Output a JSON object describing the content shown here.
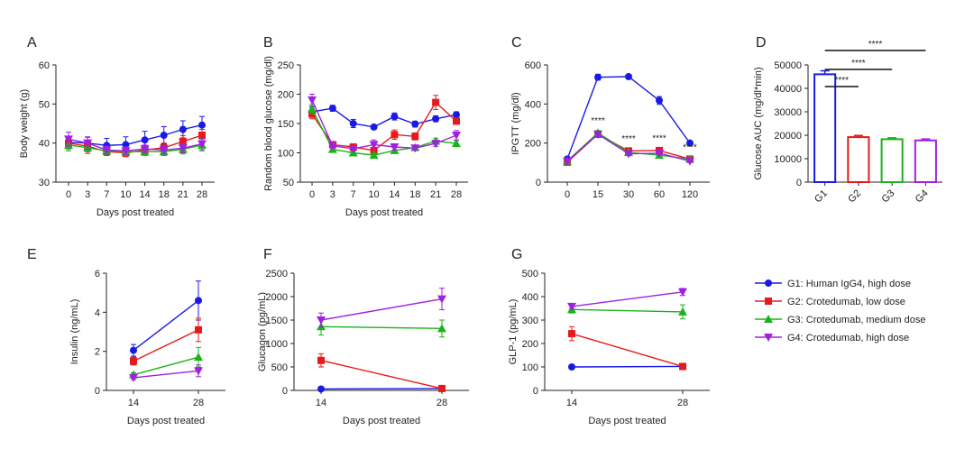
{
  "colors": {
    "G1": "#1a1ae6",
    "G2": "#e61a1a",
    "G3": "#1ab31a",
    "G4": "#a020e0"
  },
  "legend": [
    {
      "key": "G1",
      "label": "G1: Human IgG4, high dose",
      "marker": "circle"
    },
    {
      "key": "G2",
      "label": "G2: Crotedumab, low dose",
      "marker": "square"
    },
    {
      "key": "G3",
      "label": "G3: Crotedumab, medium dose",
      "marker": "triangle-up"
    },
    {
      "key": "G4",
      "label": "G4: Crotedumab, high dose",
      "marker": "triangle-down"
    }
  ],
  "chart_data": [
    {
      "panel": "A",
      "type": "line",
      "ylabel": "Body weight (g)",
      "xlabel": "Days post treated",
      "categories": [
        "0",
        "3",
        "7",
        "10",
        "14",
        "18",
        "21",
        "28"
      ],
      "ylim": [
        30,
        60
      ],
      "yticks": [
        30,
        40,
        50,
        60
      ],
      "series": [
        {
          "key": "G1",
          "values": [
            40.2,
            40.0,
            39.4,
            39.6,
            40.8,
            42.0,
            43.5,
            44.6
          ],
          "err": [
            1.5,
            1.5,
            1.8,
            2,
            2.2,
            2.2,
            2.2,
            2.2
          ]
        },
        {
          "key": "G2",
          "values": [
            40.0,
            39.2,
            37.8,
            37.5,
            38.2,
            38.8,
            40.4,
            42.0
          ],
          "err": [
            1.5,
            1.5,
            1,
            1,
            1,
            1.2,
            1.5,
            1.5
          ]
        },
        {
          "key": "G3",
          "values": [
            39.5,
            38.8,
            38.0,
            37.8,
            37.8,
            37.8,
            38.4,
            39.5
          ],
          "err": [
            1.5,
            1.5,
            1,
            1,
            1,
            1,
            1.2,
            1.5
          ]
        },
        {
          "key": "G4",
          "values": [
            41.0,
            40.0,
            38.2,
            38.0,
            38.5,
            38.2,
            38.7,
            39.8
          ],
          "err": [
            1.8,
            1.6,
            1,
            1,
            1,
            1,
            1.2,
            1.5
          ]
        }
      ]
    },
    {
      "panel": "B",
      "type": "line",
      "ylabel": "Random blood glucose (mg/dl)",
      "xlabel": "Days post treated",
      "categories": [
        "0",
        "3",
        "7",
        "10",
        "14",
        "18",
        "21",
        "28"
      ],
      "ylim": [
        50,
        250
      ],
      "yticks": [
        50,
        100,
        150,
        200,
        250
      ],
      "series": [
        {
          "key": "G1",
          "values": [
            170,
            176,
            150,
            144,
            162,
            149,
            158,
            165
          ],
          "err": [
            8,
            5,
            7,
            4,
            6,
            5,
            5,
            5
          ]
        },
        {
          "key": "G2",
          "values": [
            166,
            114,
            110,
            104,
            131,
            128,
            186,
            154
          ],
          "err": [
            8,
            4,
            4,
            5,
            8,
            6,
            12,
            5
          ]
        },
        {
          "key": "G3",
          "values": [
            175,
            106,
            100,
            96,
            104,
            109,
            120,
            116
          ],
          "err": [
            8,
            3,
            3,
            3,
            5,
            3,
            5,
            5
          ]
        },
        {
          "key": "G4",
          "values": [
            190,
            112,
            107,
            114,
            110,
            108,
            116,
            130
          ],
          "err": [
            10,
            4,
            4,
            8,
            5,
            3,
            5,
            8
          ]
        }
      ]
    },
    {
      "panel": "C",
      "type": "line",
      "ylabel": "IPGTT (mg/dl)",
      "xlabel": "",
      "categories": [
        "0",
        "15",
        "30",
        "60",
        "120"
      ],
      "ylim": [
        0,
        600
      ],
      "yticks": [
        0,
        200,
        400,
        600
      ],
      "annotations": [
        {
          "category": "15",
          "text": "****"
        },
        {
          "category": "30",
          "text": "****"
        },
        {
          "category": "60",
          "text": "****"
        },
        {
          "category": "120",
          "text": "****"
        }
      ],
      "series": [
        {
          "key": "G1",
          "values": [
            118,
            537,
            540,
            418,
            200
          ],
          "err": [
            10,
            15,
            10,
            20,
            10
          ]
        },
        {
          "key": "G2",
          "values": [
            102,
            245,
            160,
            162,
            118
          ],
          "err": [
            8,
            12,
            10,
            10,
            8
          ]
        },
        {
          "key": "G3",
          "values": [
            108,
            252,
            152,
            138,
            118
          ],
          "err": [
            8,
            12,
            8,
            8,
            8
          ]
        },
        {
          "key": "G4",
          "values": [
            106,
            245,
            145,
            148,
            108
          ],
          "err": [
            8,
            12,
            8,
            8,
            8
          ]
        }
      ]
    },
    {
      "panel": "D",
      "type": "bar",
      "ylabel": "Glucose AUC (mg/dl*min)",
      "xlabel": "",
      "categories": [
        "G1",
        "G2",
        "G3",
        "G4"
      ],
      "ylim": [
        0,
        50000
      ],
      "yticks": [
        0,
        10000,
        20000,
        30000,
        40000,
        50000
      ],
      "values": [
        46000,
        19200,
        18300,
        17800
      ],
      "err": [
        1500,
        700,
        600,
        600
      ],
      "significance": [
        {
          "from": "G1",
          "to": "G2",
          "text": "****"
        },
        {
          "from": "G1",
          "to": "G3",
          "text": "****"
        },
        {
          "from": "G1",
          "to": "G4",
          "text": "****"
        }
      ]
    },
    {
      "panel": "E",
      "type": "line",
      "ylabel": "Insulin (ng/mL)",
      "xlabel": "Days post treated",
      "categories": [
        "14",
        "28"
      ],
      "ylim": [
        0,
        6
      ],
      "yticks": [
        0,
        2,
        4,
        6
      ],
      "series": [
        {
          "key": "G1",
          "values": [
            2.05,
            4.6
          ],
          "err": [
            0.3,
            1.0
          ]
        },
        {
          "key": "G2",
          "values": [
            1.5,
            3.1
          ],
          "err": [
            0.2,
            0.6
          ]
        },
        {
          "key": "G3",
          "values": [
            0.8,
            1.7
          ],
          "err": [
            0.1,
            0.5
          ]
        },
        {
          "key": "G4",
          "values": [
            0.65,
            1.0
          ],
          "err": [
            0.1,
            0.3
          ]
        }
      ]
    },
    {
      "panel": "F",
      "type": "line",
      "ylabel": "Glucagon (pg/mL)",
      "xlabel": "Days post treated",
      "categories": [
        "14",
        "28"
      ],
      "ylim": [
        0,
        2500
      ],
      "yticks": [
        0,
        500,
        1000,
        1500,
        2000,
        2500
      ],
      "series": [
        {
          "key": "G1",
          "values": [
            30,
            40
          ],
          "err": [
            10,
            10
          ]
        },
        {
          "key": "G2",
          "values": [
            640,
            40
          ],
          "err": [
            140,
            10
          ]
        },
        {
          "key": "G3",
          "values": [
            1360,
            1320
          ],
          "err": [
            180,
            180
          ]
        },
        {
          "key": "G4",
          "values": [
            1500,
            1950
          ],
          "err": [
            150,
            230
          ]
        }
      ]
    },
    {
      "panel": "G",
      "type": "line",
      "ylabel": "GLP-1 (pg/mL)",
      "xlabel": "Days post treated",
      "categories": [
        "14",
        "28"
      ],
      "ylim": [
        0,
        500
      ],
      "yticks": [
        0,
        100,
        200,
        300,
        400,
        500
      ],
      "series": [
        {
          "key": "G1",
          "values": [
            100,
            102
          ],
          "err": [
            3,
            3
          ]
        },
        {
          "key": "G2",
          "values": [
            242,
            102
          ],
          "err": [
            30,
            5
          ]
        },
        {
          "key": "G3",
          "values": [
            345,
            335
          ],
          "err": [
            15,
            30
          ]
        },
        {
          "key": "G4",
          "values": [
            358,
            420
          ],
          "err": [
            10,
            15
          ]
        }
      ]
    }
  ]
}
